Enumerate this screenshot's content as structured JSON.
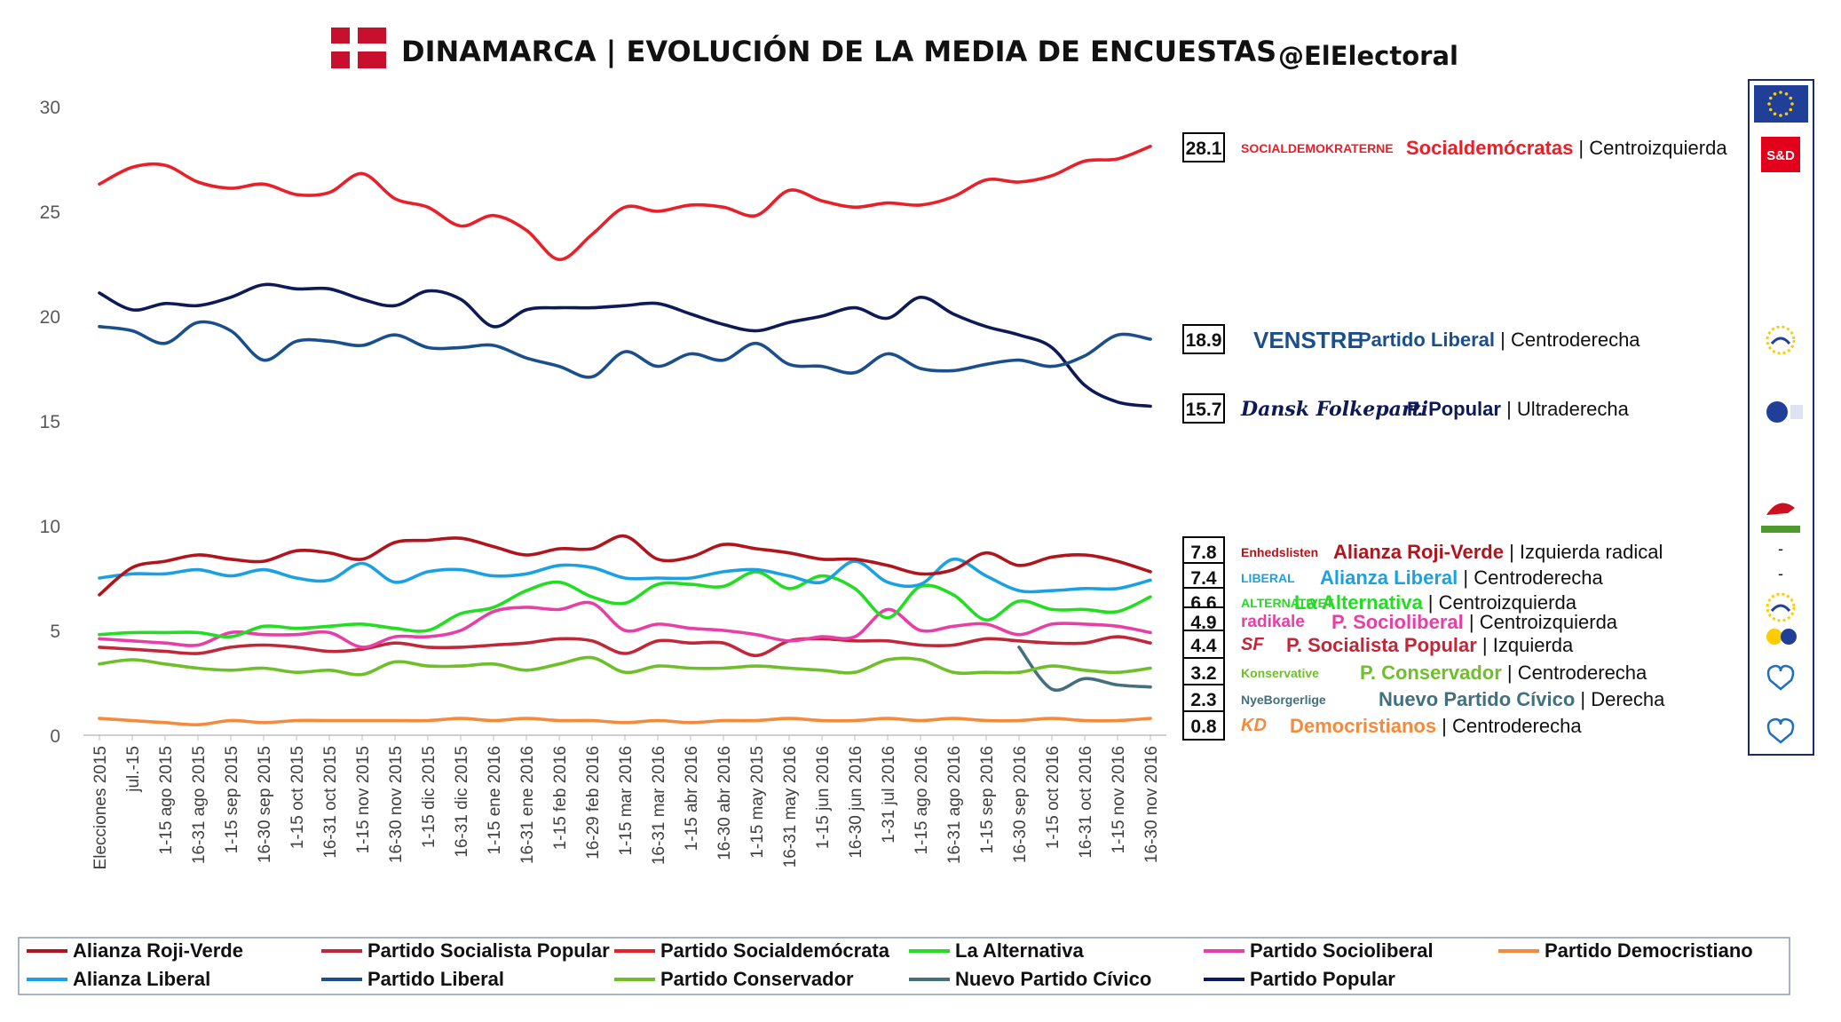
{
  "header": {
    "title": "DINAMARCA | EVOLUCIÓN DE LA MEDIA DE ENCUESTAS",
    "handle": "@ElElectoral",
    "flag_colors": {
      "red": "#c8102e",
      "white": "#ffffff"
    }
  },
  "sidebar": {
    "top_badge": "S&D",
    "dashes": [
      "-",
      "-",
      "-"
    ],
    "eu_flag_colors": {
      "blue": "#1f3f99",
      "stars": "#ffcc00"
    }
  },
  "chart_data": {
    "type": "line",
    "title": "DINAMARCA | EVOLUCIÓN DE LA MEDIA DE ENCUESTAS",
    "xlabel": "",
    "ylabel": "",
    "ylim": [
      0,
      30
    ],
    "yticks": [
      0,
      5,
      10,
      15,
      20,
      25,
      30
    ],
    "grid": false,
    "legend_position": "bottom",
    "categories": [
      "Elecciones 2015",
      "jul.-15",
      "1-15 ago 2015",
      "16-31 ago 2015",
      "1-15 sep 2015",
      "16-30 sep 2015",
      "1-15 oct 2015",
      "16-31 oct 2015",
      "1-15 nov 2015",
      "16-30 nov 2015",
      "1-15 dic 2015",
      "16-31 dic 2015",
      "1-15 ene 2016",
      "16-31 ene 2016",
      "1-15 feb 2016",
      "16-29 feb 2016",
      "1-15 mar 2016",
      "16-31 mar 2016",
      "1-15 abr 2016",
      "16-30 abr 2016",
      "1-15 may 2015",
      "16-31 may 2016",
      "1-15 jun 2016",
      "16-30 jun 2016",
      "1-31 jul 2016",
      "1-15 ago 2016",
      "16-31 ago 2016",
      "1-15 sep 2016",
      "16-30 sep 2016",
      "1-15 oct 2016",
      "16-31 oct 2016",
      "1-15 nov 2016",
      "16-30 nov 2016"
    ],
    "series": [
      {
        "name": "Partido Socialdemócrata",
        "color": "#e8202a",
        "end_label": "28.1",
        "values": [
          26.3,
          27.1,
          27.2,
          26.4,
          26.1,
          26.3,
          25.8,
          25.9,
          26.8,
          25.6,
          25.2,
          24.3,
          24.8,
          24.1,
          22.7,
          23.9,
          25.2,
          25.0,
          25.3,
          25.2,
          24.8,
          26.0,
          25.5,
          25.2,
          25.4,
          25.3,
          25.7,
          26.5,
          26.4,
          26.7,
          27.4,
          27.5,
          28.1
        ]
      },
      {
        "name": "Partido Liberal",
        "color": "#1a4f8c",
        "end_label": "18.9",
        "values": [
          19.5,
          19.3,
          18.7,
          19.7,
          19.3,
          17.9,
          18.8,
          18.8,
          18.6,
          19.1,
          18.5,
          18.5,
          18.6,
          18.0,
          17.6,
          17.1,
          18.3,
          17.6,
          18.2,
          17.9,
          18.7,
          17.7,
          17.6,
          17.3,
          18.2,
          17.5,
          17.4,
          17.7,
          17.9,
          17.6,
          18.1,
          19.1,
          18.9
        ]
      },
      {
        "name": "Partido Popular",
        "color": "#0d1a57",
        "end_label": "15.7",
        "values": [
          21.1,
          20.3,
          20.6,
          20.5,
          20.9,
          21.5,
          21.3,
          21.3,
          20.8,
          20.5,
          21.2,
          20.8,
          19.5,
          20.3,
          20.4,
          20.4,
          20.5,
          20.6,
          20.1,
          19.6,
          19.3,
          19.7,
          20.0,
          20.4,
          19.9,
          20.9,
          20.1,
          19.5,
          19.1,
          18.5,
          16.7,
          15.9,
          15.7
        ]
      },
      {
        "name": "Alianza Roji-Verde",
        "color": "#b0151d",
        "end_label": "7.8",
        "values": [
          6.7,
          8.0,
          8.3,
          8.6,
          8.4,
          8.3,
          8.8,
          8.7,
          8.4,
          9.2,
          9.3,
          9.4,
          9.0,
          8.6,
          8.9,
          8.9,
          9.5,
          8.4,
          8.5,
          9.1,
          8.9,
          8.7,
          8.4,
          8.4,
          8.1,
          7.7,
          7.9,
          8.7,
          8.1,
          8.5,
          8.6,
          8.3,
          7.8
        ]
      },
      {
        "name": "Alianza Liberal",
        "color": "#1ba1e2",
        "end_label": "7.4",
        "values": [
          7.5,
          7.7,
          7.7,
          7.9,
          7.6,
          7.9,
          7.5,
          7.4,
          8.2,
          7.3,
          7.8,
          7.9,
          7.6,
          7.7,
          8.1,
          8.0,
          7.5,
          7.5,
          7.5,
          7.8,
          7.9,
          7.6,
          7.3,
          8.3,
          7.3,
          7.2,
          8.4,
          7.6,
          6.9,
          6.9,
          7.0,
          7.0,
          7.4
        ]
      },
      {
        "name": "La Alternativa",
        "color": "#22dd22",
        "end_label": "6.6",
        "values": [
          4.8,
          4.9,
          4.9,
          4.9,
          4.7,
          5.2,
          5.1,
          5.2,
          5.3,
          5.1,
          5.0,
          5.8,
          6.1,
          6.9,
          7.3,
          6.6,
          6.3,
          7.2,
          7.2,
          7.1,
          7.8,
          7.0,
          7.6,
          7.0,
          5.6,
          7.1,
          6.7,
          5.5,
          6.4,
          6.0,
          6.0,
          5.9,
          6.6
        ]
      },
      {
        "name": "Partido Socioliberal",
        "color": "#e83fa6",
        "end_label": "4.9",
        "values": [
          4.6,
          4.5,
          4.4,
          4.3,
          4.9,
          4.8,
          4.8,
          4.9,
          4.2,
          4.7,
          4.7,
          5.0,
          5.9,
          6.1,
          6.0,
          6.3,
          5.0,
          5.3,
          5.1,
          5.0,
          4.8,
          4.5,
          4.7,
          4.7,
          6.0,
          5.0,
          5.2,
          5.3,
          4.8,
          5.3,
          5.3,
          5.2,
          4.9
        ]
      },
      {
        "name": "Partido Socialista Popular",
        "color": "#c0283a",
        "end_label": "4.4",
        "values": [
          4.2,
          4.1,
          4.0,
          3.9,
          4.2,
          4.3,
          4.2,
          4.0,
          4.1,
          4.4,
          4.2,
          4.2,
          4.3,
          4.4,
          4.6,
          4.5,
          3.9,
          4.5,
          4.4,
          4.4,
          3.8,
          4.5,
          4.6,
          4.5,
          4.5,
          4.3,
          4.3,
          4.6,
          4.5,
          4.4,
          4.4,
          4.7,
          4.4
        ]
      },
      {
        "name": "Partido Conservador",
        "color": "#6fbf2b",
        "end_label": "3.2",
        "values": [
          3.4,
          3.6,
          3.4,
          3.2,
          3.1,
          3.2,
          3.0,
          3.1,
          2.9,
          3.5,
          3.3,
          3.3,
          3.4,
          3.1,
          3.4,
          3.7,
          3.0,
          3.3,
          3.2,
          3.2,
          3.3,
          3.2,
          3.1,
          3.0,
          3.6,
          3.6,
          3.0,
          3.0,
          3.0,
          3.3,
          3.1,
          3.0,
          3.2
        ]
      },
      {
        "name": "Nuevo Partido Cívico",
        "color": "#436f7f",
        "end_label": "2.3",
        "values": [
          null,
          null,
          null,
          null,
          null,
          null,
          null,
          null,
          null,
          null,
          null,
          null,
          null,
          null,
          null,
          null,
          null,
          null,
          null,
          null,
          null,
          null,
          null,
          null,
          null,
          null,
          null,
          null,
          4.2,
          2.2,
          2.7,
          2.4,
          2.3
        ]
      },
      {
        "name": "Partido Democristiano",
        "color": "#f58a3c",
        "end_label": "0.8",
        "values": [
          0.8,
          0.7,
          0.6,
          0.5,
          0.7,
          0.6,
          0.7,
          0.7,
          0.7,
          0.7,
          0.7,
          0.8,
          0.7,
          0.8,
          0.7,
          0.7,
          0.6,
          0.7,
          0.6,
          0.7,
          0.7,
          0.8,
          0.7,
          0.7,
          0.8,
          0.7,
          0.8,
          0.7,
          0.7,
          0.8,
          0.7,
          0.7,
          0.8
        ]
      }
    ],
    "party_labels": [
      {
        "value": "28.1",
        "logo": "SOCIALDEMOKRATERNE",
        "name": "Socialdemócratas",
        "family": "Centroizquierda",
        "color": "#e8202a"
      },
      {
        "value": "18.9",
        "logo": "VENSTRE",
        "name": "Partido Liberal",
        "family": "Centroderecha",
        "color": "#1a4f8c"
      },
      {
        "value": "15.7",
        "logo": "Dansk Folkeparti",
        "name": "P. Popular",
        "family": "Ultraderecha",
        "color": "#0d1a57"
      },
      {
        "value": "7.8",
        "logo": "Enhedslisten",
        "name": "Alianza Roji-Verde",
        "family": "Izquierda radical",
        "color": "#b0151d"
      },
      {
        "value": "7.4",
        "logo": "LIBERAL",
        "name": "Alianza Liberal",
        "family": "Centroderecha",
        "color": "#1ba1e2"
      },
      {
        "value": "6.6",
        "logo": "ALTERNATIVET",
        "name": "La Alternativa",
        "family": "Centroizquierda",
        "color": "#22dd22"
      },
      {
        "value": "4.9",
        "logo": "radikale",
        "name": "P. Socioliberal",
        "family": "Centroizquierda",
        "color": "#e83fa6"
      },
      {
        "value": "4.4",
        "logo": "SF",
        "name": "P. Socialista Popular",
        "family": "Izquierda",
        "color": "#c0283a"
      },
      {
        "value": "3.2",
        "logo": "Konservative",
        "name": "P. Conservador",
        "family": "Centroderecha",
        "color": "#6fbf2b"
      },
      {
        "value": "2.3",
        "logo": "NyeBorgerlige",
        "name": "Nuevo Partido Cívico",
        "family": "Derecha",
        "color": "#436f7f"
      },
      {
        "value": "0.8",
        "logo": "KD",
        "name": "Democristianos",
        "family": "Centroderecha",
        "color": "#f58a3c"
      }
    ],
    "legend": [
      {
        "name": "Alianza Roji-Verde",
        "color": "#b0151d"
      },
      {
        "name": "Partido Socialista Popular",
        "color": "#c0283a"
      },
      {
        "name": "Partido Socialdemócrata",
        "color": "#e8202a"
      },
      {
        "name": "La Alternativa",
        "color": "#22dd22"
      },
      {
        "name": "Partido Socioliberal",
        "color": "#e83fa6"
      },
      {
        "name": "Partido Democristiano",
        "color": "#f58a3c"
      },
      {
        "name": "Alianza Liberal",
        "color": "#1ba1e2"
      },
      {
        "name": "Partido Liberal",
        "color": "#1a4f8c"
      },
      {
        "name": "Partido Conservador",
        "color": "#6fbf2b"
      },
      {
        "name": "Nuevo Partido Cívico",
        "color": "#436f7f"
      },
      {
        "name": "Partido Popular",
        "color": "#0d1a57"
      }
    ]
  }
}
